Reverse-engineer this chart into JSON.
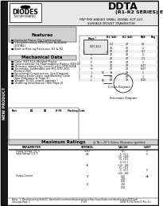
{
  "title_main": "DDTA",
  "title_series": "(R1-R2 SERIES) E",
  "subtitle": "PNP PRE-BIASED SMALL SIGNAL SOT-323\nSURFACE MOUNT TRANSISTOR",
  "company": "DIODES",
  "company_sub": "INCORPORATED",
  "section_features": "Features",
  "features": [
    "Epitaxial Planar Die Construction",
    "Complementary NPN Types Available\n(DDTA1)",
    "Built-in Biasing Resistors, R1 & R2"
  ],
  "section_mech": "Mechanical Data",
  "mech_data": [
    "Case: SOT-323, Molded Plastic",
    "Case material: UL Flammability Rating (94V-0)",
    "Moisture sensitivity: Level 1 per J-STD-020A",
    "Terminals: Solderable per MIL-STD-202,\nMethod 208",
    "Functional Construction: See Diagram",
    "Marking Data Codes and Marking Code\n(See Diagrams & Page 9)",
    "Weight: 0.001 grams (approx.)",
    "Ordering Information (See Page 2)"
  ],
  "section_ratings": "Maximum Ratings",
  "new_product_label": "NEW PRODUCT",
  "bg_color": "#ffffff",
  "border_color": "#000000",
  "header_bg": "#e0e0e0",
  "left_bar_color": "#333333",
  "logo_color": "#000000",
  "table_header_bg": "#cccccc"
}
